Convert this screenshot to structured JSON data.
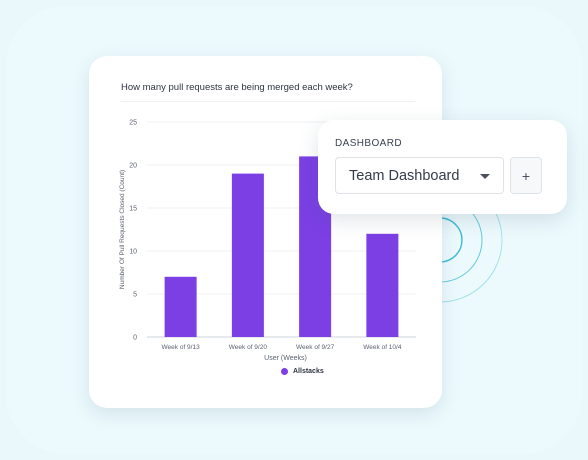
{
  "chart_card": {
    "title": "How many pull requests are being merged each week?"
  },
  "chart_data": {
    "type": "bar",
    "title": "How many pull requests are being merged each week?",
    "categories": [
      "Week of 9/13",
      "Week of 9/20",
      "Week of 9/27",
      "Week of 10/4"
    ],
    "series": [
      {
        "name": "Allstacks",
        "values": [
          7,
          19,
          21,
          12
        ]
      }
    ],
    "xlabel": "User (Weeks)",
    "ylabel": "Number Of Pull Requests Closed (Count)",
    "ylim": [
      0,
      25
    ],
    "yticks": [
      0,
      5,
      10,
      15,
      20,
      25
    ],
    "grid": true,
    "legend": "bottom-center",
    "bar_color": "#7b3fe4"
  },
  "dashboard": {
    "label": "DASHBOARD",
    "selected": "Team Dashboard",
    "add_label": "+"
  },
  "colors": {
    "background": "#eaf8fc",
    "accent": "#7b3fe4",
    "ring": "#2bb5cf"
  },
  "icons": {
    "select": "chevron-down-icon",
    "add": "plus-icon"
  }
}
